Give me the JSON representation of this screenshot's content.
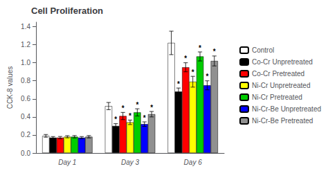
{
  "chart_data": {
    "type": "bar",
    "title": "Cell Proliferation",
    "ylabel": "CCK-8 values",
    "categories": [
      "Day 1",
      "Day 3",
      "Day 6"
    ],
    "series": [
      {
        "name": "Control",
        "color": "#FFFFFF",
        "values": [
          0.19,
          0.52,
          1.22
        ],
        "errors": [
          0.015,
          0.04,
          0.13
        ],
        "starred": [
          false,
          false,
          false
        ]
      },
      {
        "name": "Co-Cr Unpretreated",
        "color": "#000000",
        "values": [
          0.17,
          0.3,
          0.68
        ],
        "errors": [
          0.012,
          0.025,
          0.04
        ],
        "starred": [
          false,
          true,
          true
        ]
      },
      {
        "name": "Co-Cr Pretreated",
        "color": "#FF0000",
        "values": [
          0.17,
          0.41,
          0.95
        ],
        "errors": [
          0.013,
          0.04,
          0.05
        ],
        "starred": [
          false,
          true,
          true
        ]
      },
      {
        "name": "Ni-Cr Unpretreated",
        "color": "#FFFF00",
        "values": [
          0.18,
          0.34,
          0.79
        ],
        "errors": [
          0.012,
          0.025,
          0.06
        ],
        "starred": [
          false,
          true,
          true
        ]
      },
      {
        "name": "Ni-Cr Pretreated",
        "color": "#00CC00",
        "values": [
          0.18,
          0.45,
          1.07
        ],
        "errors": [
          0.013,
          0.04,
          0.05
        ],
        "starred": [
          false,
          true,
          true
        ]
      },
      {
        "name": "Ni-Cr-Be Unpretreated",
        "color": "#0000FF",
        "values": [
          0.17,
          0.32,
          0.75
        ],
        "errors": [
          0.012,
          0.025,
          0.05
        ],
        "starred": [
          false,
          true,
          true
        ]
      },
      {
        "name": "Ni-Cr-Be Pretreated",
        "color": "#909090",
        "values": [
          0.18,
          0.43,
          1.02
        ],
        "errors": [
          0.013,
          0.03,
          0.055
        ],
        "starred": [
          false,
          true,
          true
        ]
      }
    ],
    "annotation": "*",
    "ylim": [
      0,
      1.45
    ],
    "yticks": [
      {
        "value": 0.0,
        "label": "0.0"
      },
      0.2,
      0.4,
      0.6,
      0.8,
      {
        "value": 1.0,
        "label": "1.0"
      },
      1.2,
      1.4
    ],
    "grid": false,
    "legend": "right"
  }
}
